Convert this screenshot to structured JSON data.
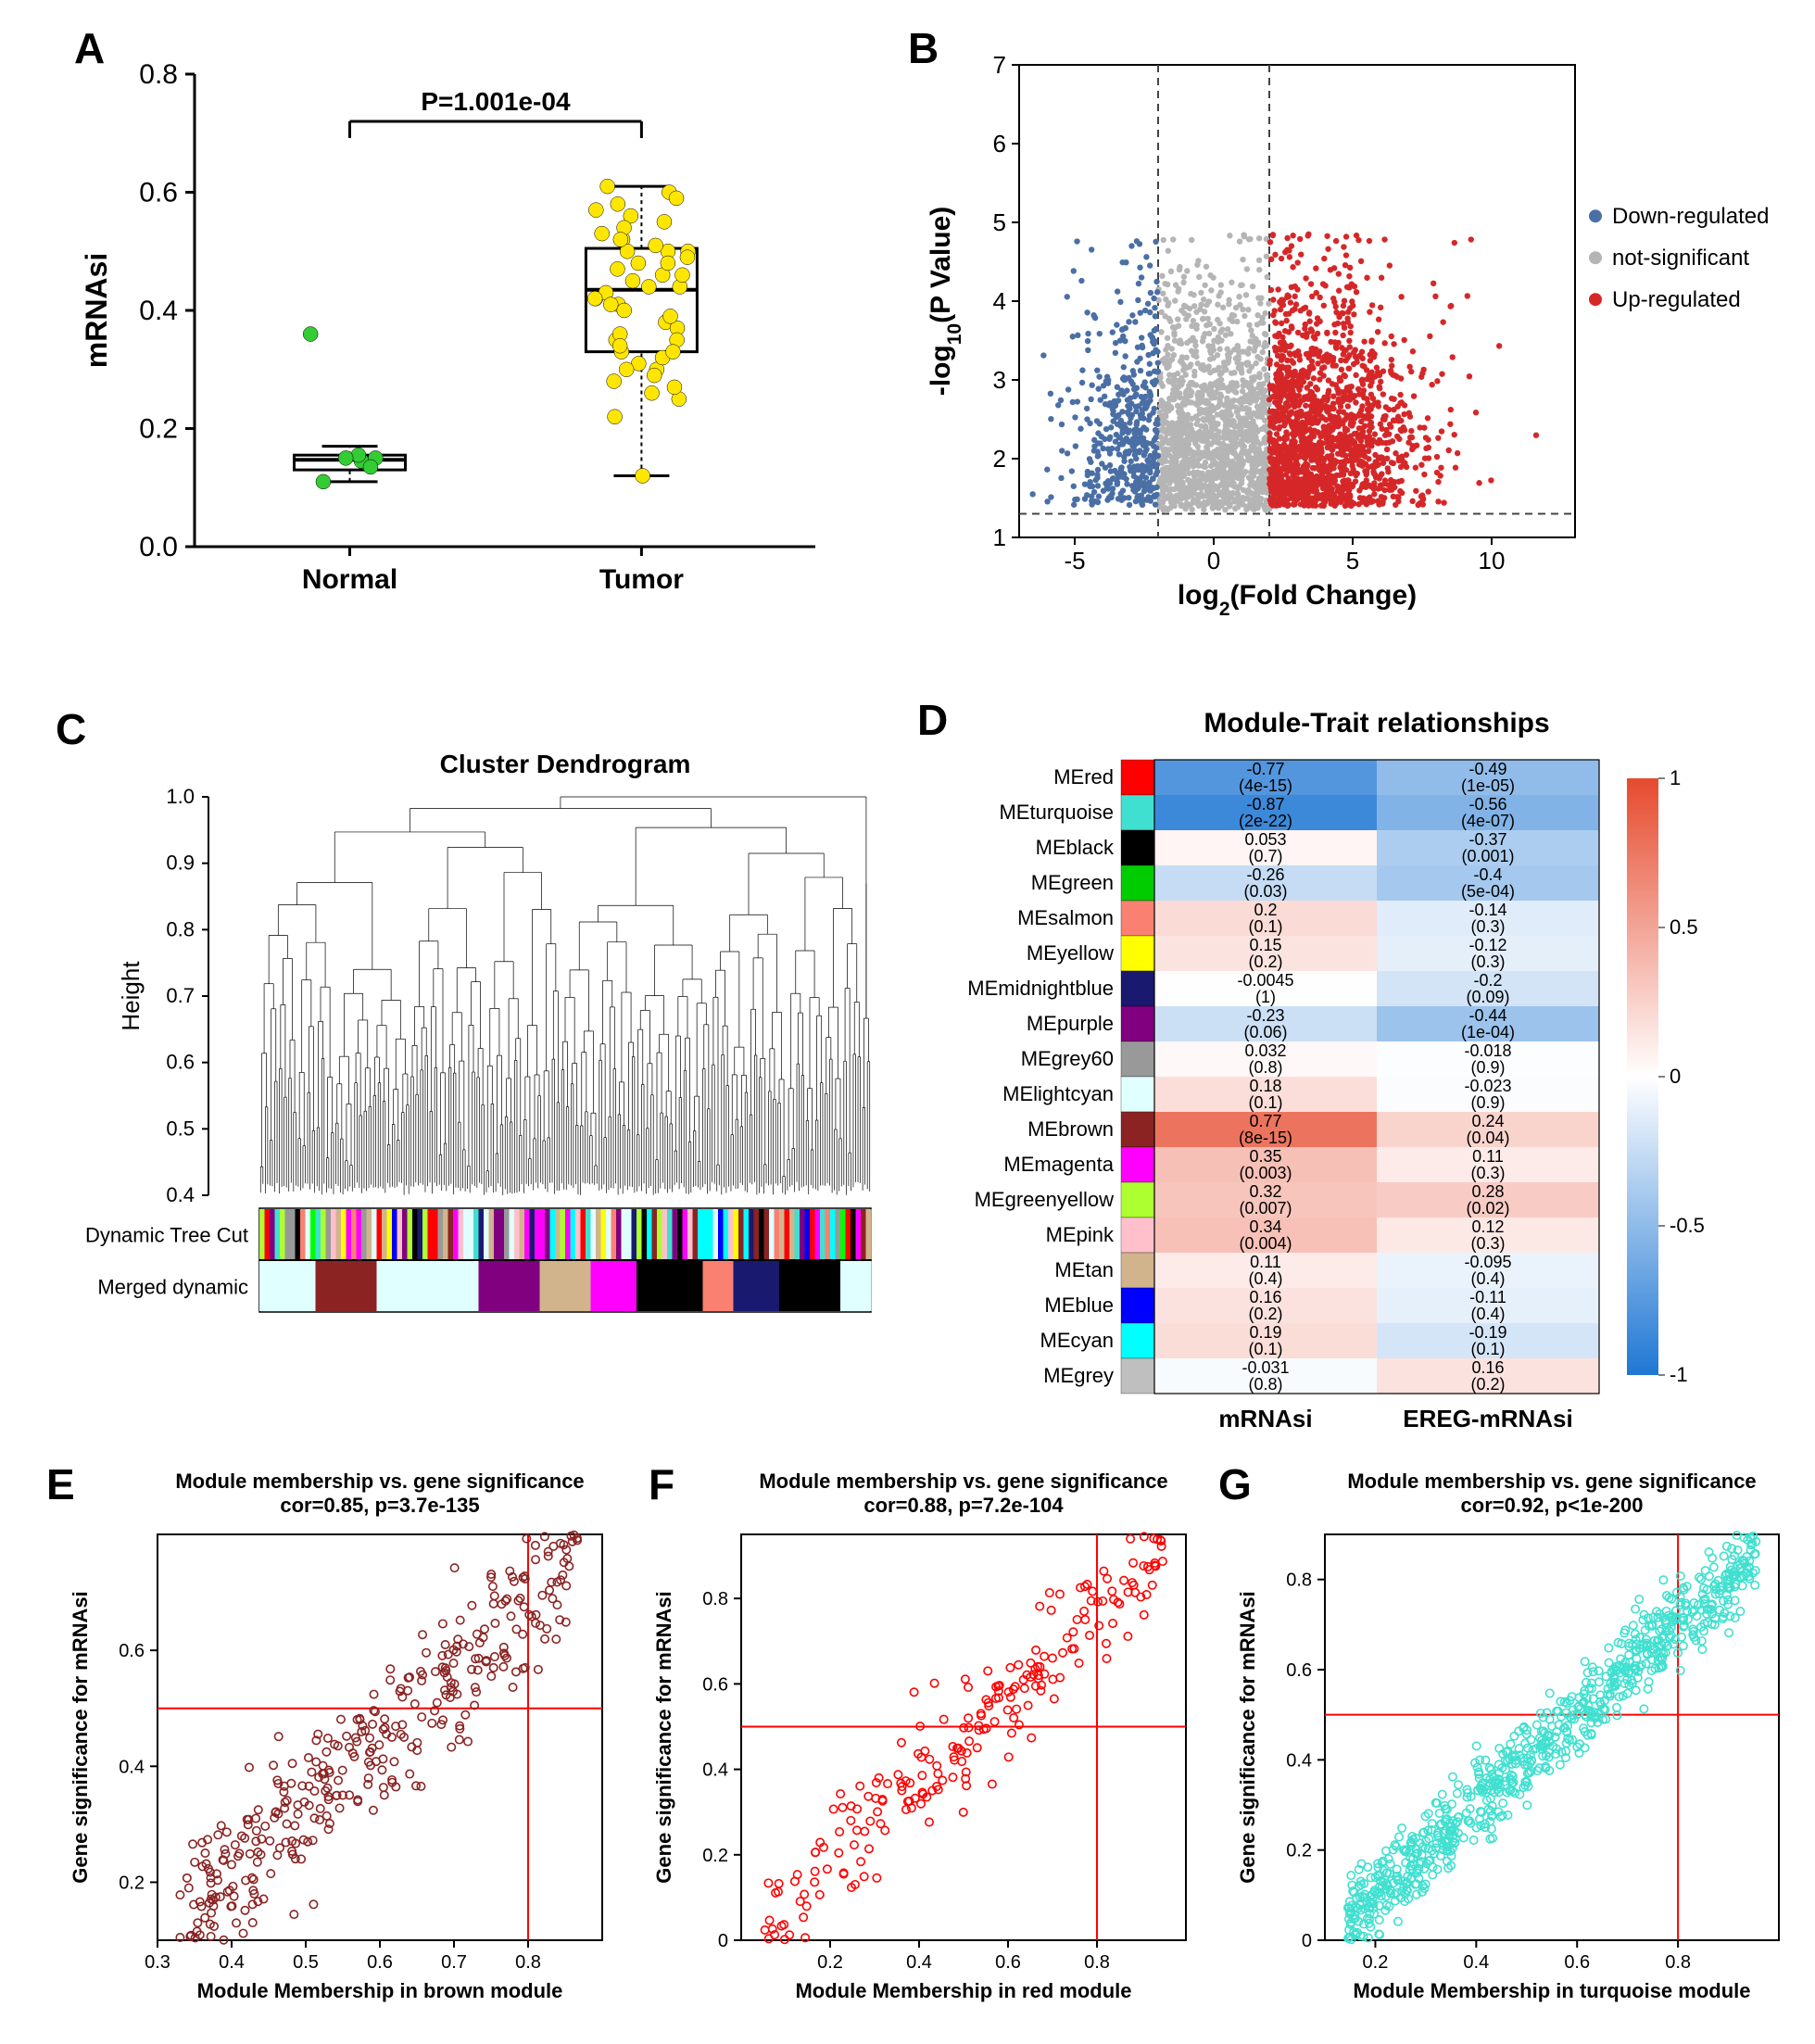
{
  "labels": {
    "A": "A",
    "B": "B",
    "C": "C",
    "D": "D",
    "E": "E",
    "F": "F",
    "G": "G"
  },
  "A": {
    "type": "boxplot",
    "ylabel": "mRNAsi",
    "categories": [
      "Normal",
      "Tumor"
    ],
    "annotation": "P=1.001e-04",
    "ylim": [
      0.0,
      0.8
    ],
    "ytick_step": 0.2,
    "axis_fontsize": 32,
    "tick_fontsize": 30,
    "anno_fontsize": 28,
    "box_color": "#000000",
    "point_colors": [
      "#33cc33",
      "#ffe600"
    ],
    "background": "#ffffff",
    "boxes": [
      {
        "min": 0.11,
        "q1": 0.13,
        "med": 0.147,
        "q3": 0.155,
        "max": 0.17
      },
      {
        "min": 0.12,
        "q1": 0.33,
        "med": 0.435,
        "q3": 0.505,
        "max": 0.61
      }
    ],
    "points": {
      "Normal": [
        0.14,
        0.15,
        0.11,
        0.145,
        0.36,
        0.155,
        0.135,
        0.15
      ],
      "Tumor": [
        0.44,
        0.35,
        0.5,
        0.55,
        0.3,
        0.42,
        0.48,
        0.52,
        0.25,
        0.33,
        0.38,
        0.46,
        0.41,
        0.57,
        0.6,
        0.28,
        0.36,
        0.43,
        0.31,
        0.5,
        0.47,
        0.53,
        0.27,
        0.4,
        0.45,
        0.49,
        0.34,
        0.56,
        0.22,
        0.59,
        0.32,
        0.37,
        0.12,
        0.39,
        0.51,
        0.61,
        0.29,
        0.44,
        0.54,
        0.48,
        0.26,
        0.42,
        0.46,
        0.3,
        0.5,
        0.35,
        0.58,
        0.41,
        0.33,
        0.52
      ]
    }
  },
  "B": {
    "type": "scatter",
    "xlabel": "log2(Fold Change)",
    "ylabel": "-log10(P Value)",
    "xlim": [
      -7,
      13
    ],
    "ylim": [
      1,
      7
    ],
    "xtick_step": 5,
    "ytick_step": 1,
    "legend": [
      "Down-regulated",
      "not-significant",
      "Up-regulated"
    ],
    "legend_fontsize": 24,
    "axis_fontsize": 30,
    "tick_fontsize": 26,
    "vlines": [
      -2,
      2
    ],
    "hline": 1.3,
    "colors": {
      "down": "#4a6fa5",
      "ns": "#b5b5b5",
      "up": "#d62728"
    },
    "grid_color": "#e0e0e0",
    "point_radius": 3.2
  },
  "C": {
    "type": "dendrogram",
    "title": "Cluster Dendrogram",
    "ylabel": "Height",
    "ylim": [
      0.4,
      1.0
    ],
    "ytick_step": 0.1,
    "row_labels": [
      "Dynamic Tree Cut",
      "Merged dynamic"
    ],
    "title_fontsize": 28,
    "axis_fontsize": 26,
    "tick_fontsize": 22,
    "label_fontsize": 22,
    "module_colors": [
      "#ff0000",
      "#40e0d0",
      "#000000",
      "#00ff00",
      "#fa8072",
      "#ffff00",
      "#191970",
      "#800080",
      "#999999",
      "#e0ffff",
      "#8b2323",
      "#ff00ff",
      "#adff2f",
      "#ffc0cb",
      "#d2b48c",
      "#0000ff",
      "#00ffff"
    ]
  },
  "D": {
    "type": "heatmap",
    "title": "Module-Trait relationships",
    "xlabels": [
      "mRNAsi",
      "EREG-mRNAsi"
    ],
    "modules": [
      {
        "name": "MEred",
        "color": "#ff0000",
        "v": [
          {
            "r": -0.77,
            "p": "(4e-15)"
          },
          {
            "r": -0.49,
            "p": "(1e-05)"
          }
        ]
      },
      {
        "name": "MEturquoise",
        "color": "#40e0d0",
        "v": [
          {
            "r": -0.87,
            "p": "(2e-22)"
          },
          {
            "r": -0.56,
            "p": "(4e-07)"
          }
        ]
      },
      {
        "name": "MEblack",
        "color": "#000000",
        "v": [
          {
            "r": 0.053,
            "p": "(0.7)"
          },
          {
            "r": -0.37,
            "p": "(0.001)"
          }
        ]
      },
      {
        "name": "MEgreen",
        "color": "#00cc00",
        "v": [
          {
            "r": -0.26,
            "p": "(0.03)"
          },
          {
            "r": -0.4,
            "p": "(5e-04)"
          }
        ]
      },
      {
        "name": "MEsalmon",
        "color": "#fa8072",
        "v": [
          {
            "r": 0.2,
            "p": "(0.1)"
          },
          {
            "r": -0.14,
            "p": "(0.3)"
          }
        ]
      },
      {
        "name": "MEyellow",
        "color": "#ffff00",
        "v": [
          {
            "r": 0.15,
            "p": "(0.2)"
          },
          {
            "r": -0.12,
            "p": "(0.3)"
          }
        ]
      },
      {
        "name": "MEmidnightblue",
        "color": "#191970",
        "v": [
          {
            "r": -0.0045,
            "p": "(1)"
          },
          {
            "r": -0.2,
            "p": "(0.09)"
          }
        ]
      },
      {
        "name": "MEpurple",
        "color": "#800080",
        "v": [
          {
            "r": -0.23,
            "p": "(0.06)"
          },
          {
            "r": -0.44,
            "p": "(1e-04)"
          }
        ]
      },
      {
        "name": "MEgrey60",
        "color": "#999999",
        "v": [
          {
            "r": 0.032,
            "p": "(0.8)"
          },
          {
            "r": -0.018,
            "p": "(0.9)"
          }
        ]
      },
      {
        "name": "MElightcyan",
        "color": "#e0ffff",
        "v": [
          {
            "r": 0.18,
            "p": "(0.1)"
          },
          {
            "r": -0.023,
            "p": "(0.9)"
          }
        ]
      },
      {
        "name": "MEbrown",
        "color": "#8b2323",
        "v": [
          {
            "r": 0.77,
            "p": "(8e-15)"
          },
          {
            "r": 0.24,
            "p": "(0.04)"
          }
        ]
      },
      {
        "name": "MEmagenta",
        "color": "#ff00ff",
        "v": [
          {
            "r": 0.35,
            "p": "(0.003)"
          },
          {
            "r": 0.11,
            "p": "(0.3)"
          }
        ]
      },
      {
        "name": "MEgreenyellow",
        "color": "#adff2f",
        "v": [
          {
            "r": 0.32,
            "p": "(0.007)"
          },
          {
            "r": 0.28,
            "p": "(0.02)"
          }
        ]
      },
      {
        "name": "MEpink",
        "color": "#ffc0cb",
        "v": [
          {
            "r": 0.34,
            "p": "(0.004)"
          },
          {
            "r": 0.12,
            "p": "(0.3)"
          }
        ]
      },
      {
        "name": "MEtan",
        "color": "#d2b48c",
        "v": [
          {
            "r": 0.11,
            "p": "(0.4)"
          },
          {
            "r": -0.095,
            "p": "(0.4)"
          }
        ]
      },
      {
        "name": "MEblue",
        "color": "#0000ff",
        "v": [
          {
            "r": 0.16,
            "p": "(0.2)"
          },
          {
            "r": -0.11,
            "p": "(0.4)"
          }
        ]
      },
      {
        "name": "MEcyan",
        "color": "#00ffff",
        "v": [
          {
            "r": 0.19,
            "p": "(0.1)"
          },
          {
            "r": -0.19,
            "p": "(0.1)"
          }
        ]
      },
      {
        "name": "MEgrey",
        "color": "#bfbfbf",
        "v": [
          {
            "r": -0.031,
            "p": "(0.8)"
          },
          {
            "r": 0.16,
            "p": "(0.2)"
          }
        ]
      }
    ],
    "title_fontsize": 30,
    "row_fontsize": 22,
    "cell_fontsize": 18,
    "xlabel_fontsize": 26,
    "colorbar_ticks": [
      -1,
      -0.5,
      0,
      0.5,
      1
    ],
    "colorbar_pos_color": "#e64a2e",
    "colorbar_neg_color": "#1f77d4",
    "colorbar_mid_color": "#ffffff"
  },
  "E": {
    "title": "Module membership vs. gene significance",
    "subtitle": "cor=0.85, p=3.7e-135",
    "xlabel": "Module Membership in brown module",
    "ylabel": "Gene significance for  mRNAsi",
    "xlim": [
      0.3,
      0.9
    ],
    "ylim": [
      0.1,
      0.8
    ],
    "xticks": [
      0.3,
      0.4,
      0.5,
      0.6,
      0.7,
      0.8
    ],
    "yticks": [
      0.2,
      0.4,
      0.6
    ],
    "hline": 0.5,
    "vline": 0.8,
    "point_color": "#8b2323",
    "line_color": "#ff0000",
    "fontsize_title": 22,
    "fontsize_axis": 22,
    "fontsize_tick": 20,
    "n_points": 350
  },
  "F": {
    "title": "Module membership vs. gene significance",
    "subtitle": "cor=0.88, p=7.2e-104",
    "xlabel": "Module Membership in red module",
    "ylabel": "Gene significance for  mRNAsi",
    "xlim": [
      0.0,
      1.0
    ],
    "ylim": [
      0.0,
      0.95
    ],
    "xticks": [
      0.2,
      0.4,
      0.6,
      0.8
    ],
    "yticks": [
      0.0,
      0.2,
      0.4,
      0.6,
      0.8
    ],
    "hline": 0.5,
    "vline": 0.8,
    "point_color": "#ff0000",
    "line_color": "#ff0000",
    "fontsize_title": 22,
    "fontsize_axis": 22,
    "fontsize_tick": 20,
    "n_points": 220
  },
  "G": {
    "title": "Module membership vs. gene significance",
    "subtitle": "cor=0.92, p<1e-200",
    "xlabel": "Module Membership in turquoise module",
    "ylabel": "Gene significance for  mRNAsi",
    "xlim": [
      0.1,
      1.0
    ],
    "ylim": [
      0.0,
      0.9
    ],
    "xticks": [
      0.2,
      0.4,
      0.6,
      0.8
    ],
    "yticks": [
      0.0,
      0.2,
      0.4,
      0.6,
      0.8
    ],
    "hline": 0.5,
    "vline": 0.8,
    "point_color": "#40e0d0",
    "line_color": "#ff0000",
    "fontsize_title": 22,
    "fontsize_axis": 22,
    "fontsize_tick": 20,
    "n_points": 800
  }
}
